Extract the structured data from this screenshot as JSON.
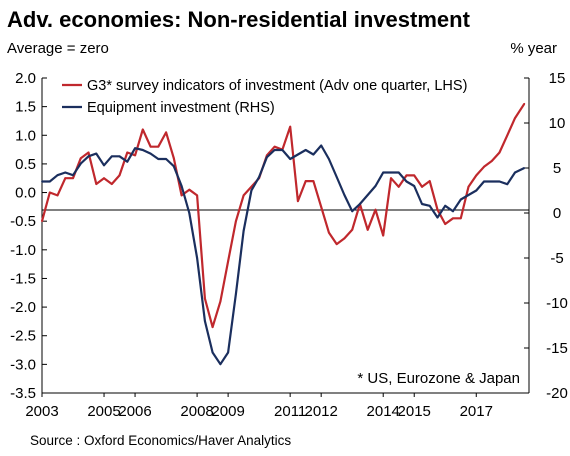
{
  "title": "Adv. economies: Non-residential investment",
  "left_unit": "Average = zero",
  "right_unit": "% year",
  "source": "Source : Oxford Economics/Haver Analytics",
  "note": "* US, Eurozone & Japan",
  "colors": {
    "survey": "#c0282d",
    "equipment": "#1b2f5e",
    "zero_line": "#000000"
  },
  "chart_data": {
    "type": "line",
    "x_ticks": [
      "2003",
      "2005",
      "2006",
      "2008",
      "2009",
      "2011",
      "2012",
      "2014",
      "2015",
      "2017"
    ],
    "x_range": [
      2003.0,
      2018.7
    ],
    "y_left": {
      "ticks": [
        "2.0",
        "1.5",
        "1.0",
        "0.5",
        "0.0",
        "-0.5",
        "-1.0",
        "-1.5",
        "-2.0",
        "-2.5",
        "-3.0",
        "-3.5"
      ],
      "range": [
        -3.5,
        2.0
      ]
    },
    "y_right": {
      "ticks": [
        "15",
        "10",
        "5",
        "0",
        "-5",
        "-10",
        "-15",
        "-20"
      ],
      "range": [
        -20,
        15
      ]
    },
    "grid": false,
    "legend_position": "top",
    "series": [
      {
        "name": "G3* survey indicators of investment (Adv one quarter, LHS)",
        "axis": "left",
        "x": [
          2003.0,
          2003.25,
          2003.5,
          2003.75,
          2004.0,
          2004.25,
          2004.5,
          2004.75,
          2005.0,
          2005.25,
          2005.5,
          2005.75,
          2006.0,
          2006.25,
          2006.5,
          2006.75,
          2007.0,
          2007.25,
          2007.5,
          2007.75,
          2008.0,
          2008.25,
          2008.5,
          2008.75,
          2009.0,
          2009.25,
          2009.5,
          2009.75,
          2010.0,
          2010.25,
          2010.5,
          2010.75,
          2011.0,
          2011.25,
          2011.5,
          2011.75,
          2012.0,
          2012.25,
          2012.5,
          2012.75,
          2013.0,
          2013.25,
          2013.5,
          2013.75,
          2014.0,
          2014.25,
          2014.5,
          2014.75,
          2015.0,
          2015.25,
          2015.5,
          2015.75,
          2016.0,
          2016.25,
          2016.5,
          2016.75,
          2017.0,
          2017.25,
          2017.5,
          2017.75,
          2018.0,
          2018.25,
          2018.55
        ],
        "values": [
          -0.5,
          0.0,
          -0.05,
          0.25,
          0.25,
          0.6,
          0.7,
          0.15,
          0.25,
          0.15,
          0.3,
          0.7,
          0.65,
          1.1,
          0.8,
          0.8,
          1.05,
          0.6,
          -0.05,
          0.05,
          -0.05,
          -1.85,
          -2.35,
          -1.9,
          -1.2,
          -0.5,
          -0.05,
          0.1,
          0.25,
          0.65,
          0.8,
          0.75,
          1.15,
          -0.15,
          0.2,
          0.2,
          -0.25,
          -0.7,
          -0.9,
          -0.8,
          -0.65,
          -0.2,
          -0.65,
          -0.3,
          -0.75,
          0.25,
          0.1,
          0.3,
          0.3,
          0.1,
          0.2,
          -0.3,
          -0.55,
          -0.45,
          -0.45,
          0.1,
          0.3,
          0.45,
          0.55,
          0.7,
          1.0,
          1.3,
          1.55
        ]
      },
      {
        "name": "Equipment investment (RHS)",
        "axis": "right",
        "x": [
          2003.0,
          2003.25,
          2003.5,
          2003.75,
          2004.0,
          2004.25,
          2004.5,
          2004.75,
          2005.0,
          2005.25,
          2005.5,
          2005.75,
          2006.0,
          2006.25,
          2006.5,
          2006.75,
          2007.0,
          2007.25,
          2007.5,
          2007.75,
          2008.0,
          2008.25,
          2008.5,
          2008.75,
          2009.0,
          2009.25,
          2009.5,
          2009.75,
          2010.0,
          2010.25,
          2010.5,
          2010.75,
          2011.0,
          2011.25,
          2011.5,
          2011.75,
          2012.0,
          2012.25,
          2012.5,
          2012.75,
          2013.0,
          2013.25,
          2013.5,
          2013.75,
          2014.0,
          2014.25,
          2014.5,
          2014.75,
          2015.0,
          2015.25,
          2015.5,
          2015.75,
          2016.0,
          2016.25,
          2016.5,
          2016.75,
          2017.0,
          2017.25,
          2017.5,
          2017.75,
          2018.0,
          2018.25,
          2018.55
        ],
        "values": [
          3.5,
          3.5,
          4.2,
          4.5,
          4.2,
          5.5,
          6.3,
          6.6,
          5.3,
          6.3,
          6.3,
          5.7,
          7.2,
          7.0,
          6.6,
          6.0,
          6.0,
          5.2,
          3.0,
          0.0,
          -5.0,
          -12.0,
          -15.5,
          -16.8,
          -15.5,
          -9.0,
          -2.0,
          2.5,
          4.0,
          6.2,
          7.0,
          7.0,
          6.0,
          6.5,
          7.0,
          6.5,
          7.5,
          6.0,
          4.0,
          2.0,
          0.2,
          1.0,
          2.0,
          3.0,
          4.5,
          4.5,
          4.5,
          3.5,
          3.0,
          1.0,
          0.8,
          -0.5,
          0.8,
          0.2,
          1.5,
          2.0,
          2.5,
          3.5,
          3.5,
          3.5,
          3.2,
          4.5,
          5.0
        ]
      }
    ]
  }
}
